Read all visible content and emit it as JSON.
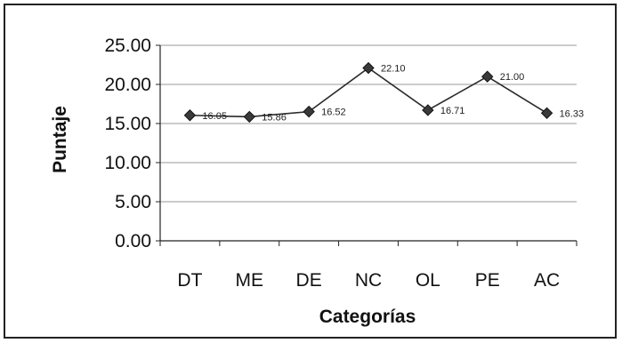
{
  "chart_data": {
    "type": "line",
    "categories": [
      "DT",
      "ME",
      "DE",
      "NC",
      "OL",
      "PE",
      "AC"
    ],
    "series": [
      {
        "values": [
          16.05,
          15.86,
          16.52,
          22.1,
          16.71,
          21.0,
          16.33
        ],
        "labels": [
          "16.05",
          "15.86",
          "16.52",
          "22.10",
          "16.71",
          "21.00",
          "16.33"
        ]
      }
    ],
    "xlabel": "Categorías",
    "ylabel": "Puntaje",
    "ylim": [
      0,
      25
    ],
    "yticks": [
      "0.00",
      "5.00",
      "10.00",
      "15.00",
      "20.00",
      "25.00"
    ],
    "grid": "horizontal",
    "legend": "none",
    "colors": {
      "line": "#2a2a2a",
      "marker": "#3a3a3a",
      "grid": "#9a9a9a",
      "frame": "#222222"
    }
  }
}
